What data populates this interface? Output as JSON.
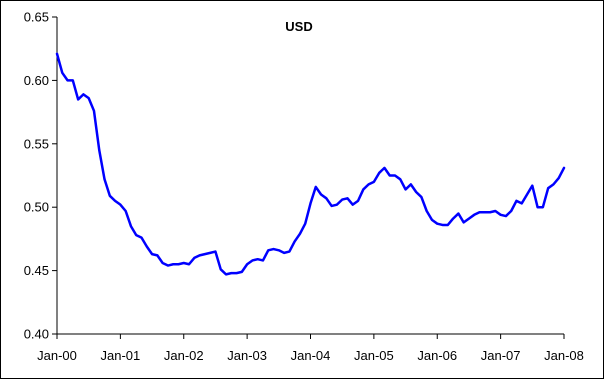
{
  "chart_data": {
    "type": "line",
    "title": "USD",
    "xlabel": "",
    "ylabel": "",
    "x_ticks": [
      "Jan-00",
      "Jan-01",
      "Jan-02",
      "Jan-03",
      "Jan-04",
      "Jan-05",
      "Jan-06",
      "Jan-07",
      "Jan-08"
    ],
    "y_ticks": [
      "0.40",
      "0.45",
      "0.50",
      "0.55",
      "0.60",
      "0.65"
    ],
    "ylim": [
      0.4,
      0.65
    ],
    "xlim": [
      0,
      96
    ],
    "grid": false,
    "legend": "none",
    "series": [
      {
        "color": "#0000ff",
        "x": [
          0,
          1,
          2,
          3,
          4,
          5,
          6,
          7,
          8,
          9,
          10,
          11,
          12,
          13,
          14,
          15,
          16,
          17,
          18,
          19,
          20,
          21,
          22,
          23,
          24,
          25,
          26,
          27,
          28,
          29,
          30,
          31,
          32,
          33,
          34,
          35,
          36,
          37,
          38,
          39,
          40,
          41,
          42,
          43,
          44,
          45,
          46,
          47,
          48,
          49,
          50,
          51,
          52,
          53,
          54,
          55,
          56,
          57,
          58,
          59,
          60,
          61,
          62,
          63,
          64,
          65,
          66,
          67,
          68,
          69,
          70,
          71,
          72,
          73,
          74,
          75,
          76,
          77,
          78,
          79,
          80,
          81,
          82,
          83,
          84,
          85,
          86,
          87,
          88,
          89,
          90,
          91,
          92,
          93,
          94,
          95,
          96
        ],
        "values": [
          0.621,
          0.606,
          0.6,
          0.6,
          0.585,
          0.589,
          0.586,
          0.576,
          0.545,
          0.522,
          0.509,
          0.505,
          0.502,
          0.497,
          0.485,
          0.478,
          0.476,
          0.469,
          0.463,
          0.462,
          0.456,
          0.454,
          0.455,
          0.455,
          0.456,
          0.455,
          0.46,
          0.462,
          0.463,
          0.464,
          0.465,
          0.451,
          0.447,
          0.448,
          0.448,
          0.449,
          0.455,
          0.458,
          0.459,
          0.458,
          0.466,
          0.467,
          0.466,
          0.464,
          0.465,
          0.473,
          0.479,
          0.487,
          0.503,
          0.516,
          0.51,
          0.507,
          0.501,
          0.502,
          0.506,
          0.507,
          0.502,
          0.505,
          0.514,
          0.518,
          0.52,
          0.527,
          0.531,
          0.525,
          0.525,
          0.522,
          0.514,
          0.518,
          0.512,
          0.508,
          0.497,
          0.49,
          0.487,
          0.486,
          0.486,
          0.491,
          0.495,
          0.488,
          0.491,
          0.494,
          0.496,
          0.496,
          0.496,
          0.497,
          0.494,
          0.493,
          0.497,
          0.505,
          0.503,
          0.51,
          0.517,
          0.5,
          0.5,
          0.515,
          0.518,
          0.523,
          0.531
        ]
      }
    ]
  }
}
